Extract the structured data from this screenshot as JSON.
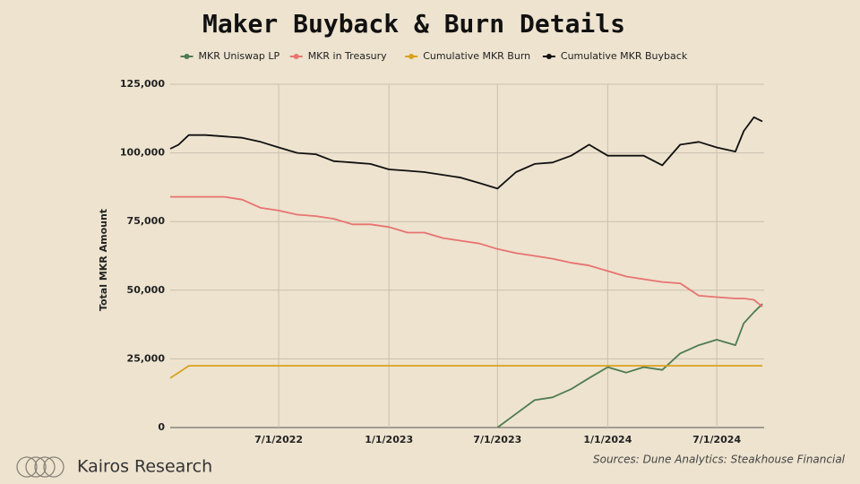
{
  "chart_data": {
    "type": "line",
    "title": "Maker Buyback & Burn Details",
    "ylabel": "Total MKR Amount",
    "x": [
      "2022-01-01",
      "2022-01-15",
      "2022-02-01",
      "2022-03-01",
      "2022-04-01",
      "2022-05-01",
      "2022-06-01",
      "2022-07-01",
      "2022-08-01",
      "2022-09-01",
      "2022-10-01",
      "2022-11-01",
      "2022-12-01",
      "2023-01-01",
      "2023-02-01",
      "2023-03-01",
      "2023-04-01",
      "2023-05-01",
      "2023-06-01",
      "2023-07-01",
      "2023-08-01",
      "2023-09-01",
      "2023-10-01",
      "2023-11-01",
      "2023-12-01",
      "2024-01-01",
      "2024-02-01",
      "2024-03-01",
      "2024-04-01",
      "2024-05-01",
      "2024-06-01",
      "2024-07-01",
      "2024-08-01",
      "2024-08-15",
      "2024-09-01",
      "2024-09-15"
    ],
    "series": [
      {
        "name": "MKR Uniswap LP",
        "color": "#4f7b50",
        "values": [
          null,
          null,
          null,
          null,
          null,
          null,
          null,
          null,
          null,
          null,
          null,
          null,
          null,
          null,
          null,
          null,
          null,
          null,
          null,
          0,
          5000,
          10000,
          11000,
          14000,
          18000,
          22000,
          20000,
          22000,
          21000,
          27000,
          30000,
          32000,
          30000,
          38000,
          42000,
          45000
        ]
      },
      {
        "name": "MKR in Treasury",
        "color": "#e8736f",
        "values": [
          84000,
          84000,
          84000,
          84000,
          84000,
          83000,
          80000,
          79000,
          77500,
          77000,
          76000,
          74000,
          74000,
          73000,
          71000,
          71000,
          69000,
          68000,
          67000,
          65000,
          63500,
          62500,
          61500,
          60000,
          59000,
          57000,
          55000,
          54000,
          53000,
          52500,
          48000,
          47500,
          47000,
          47000,
          46500,
          44000
        ]
      },
      {
        "name": "Cumulative MKR Burn",
        "color": "#d9a11e",
        "values": [
          18000,
          20000,
          22500,
          22500,
          22500,
          22500,
          22500,
          22500,
          22500,
          22500,
          22500,
          22500,
          22500,
          22500,
          22500,
          22500,
          22500,
          22500,
          22500,
          22500,
          22500,
          22500,
          22500,
          22500,
          22500,
          22500,
          22500,
          22500,
          22500,
          22500,
          22500,
          22500,
          22500,
          22500,
          22500,
          22500
        ]
      },
      {
        "name": "Cumulative MKR Buyback",
        "color": "#111111",
        "values": [
          101500,
          103000,
          106500,
          106500,
          106000,
          105500,
          104000,
          102000,
          100000,
          99500,
          97000,
          96500,
          96000,
          94000,
          93500,
          93000,
          92000,
          91000,
          89000,
          87000,
          93000,
          96000,
          96500,
          99000,
          103000,
          99000,
          99000,
          99000,
          95500,
          103000,
          104000,
          102000,
          100500,
          108000,
          113000,
          111500
        ]
      }
    ],
    "xlim": [
      "2022-01-01",
      "2024-09-18"
    ],
    "xticks": [
      {
        "value": "2022-07-01",
        "label": "7/1/2022"
      },
      {
        "value": "2023-01-01",
        "label": "1/1/2023"
      },
      {
        "value": "2023-07-01",
        "label": "7/1/2023"
      },
      {
        "value": "2024-01-01",
        "label": "1/1/2024"
      },
      {
        "value": "2024-07-01",
        "label": "7/1/2024"
      }
    ],
    "ylim": [
      0,
      125000
    ],
    "yticks": [
      0,
      {
        "value": 25000,
        "label": "25,000"
      },
      {
        "value": 50000,
        "label": "50,000"
      },
      {
        "value": 75000,
        "label": "75,000"
      },
      {
        "value": 100000,
        "label": "100,000"
      },
      {
        "value": 125000,
        "label": "125,000"
      }
    ],
    "grid": true,
    "legend": "top"
  },
  "footer": {
    "brand": "Kairos Research",
    "source": "Sources: Dune Analytics: Steakhouse Financial"
  }
}
